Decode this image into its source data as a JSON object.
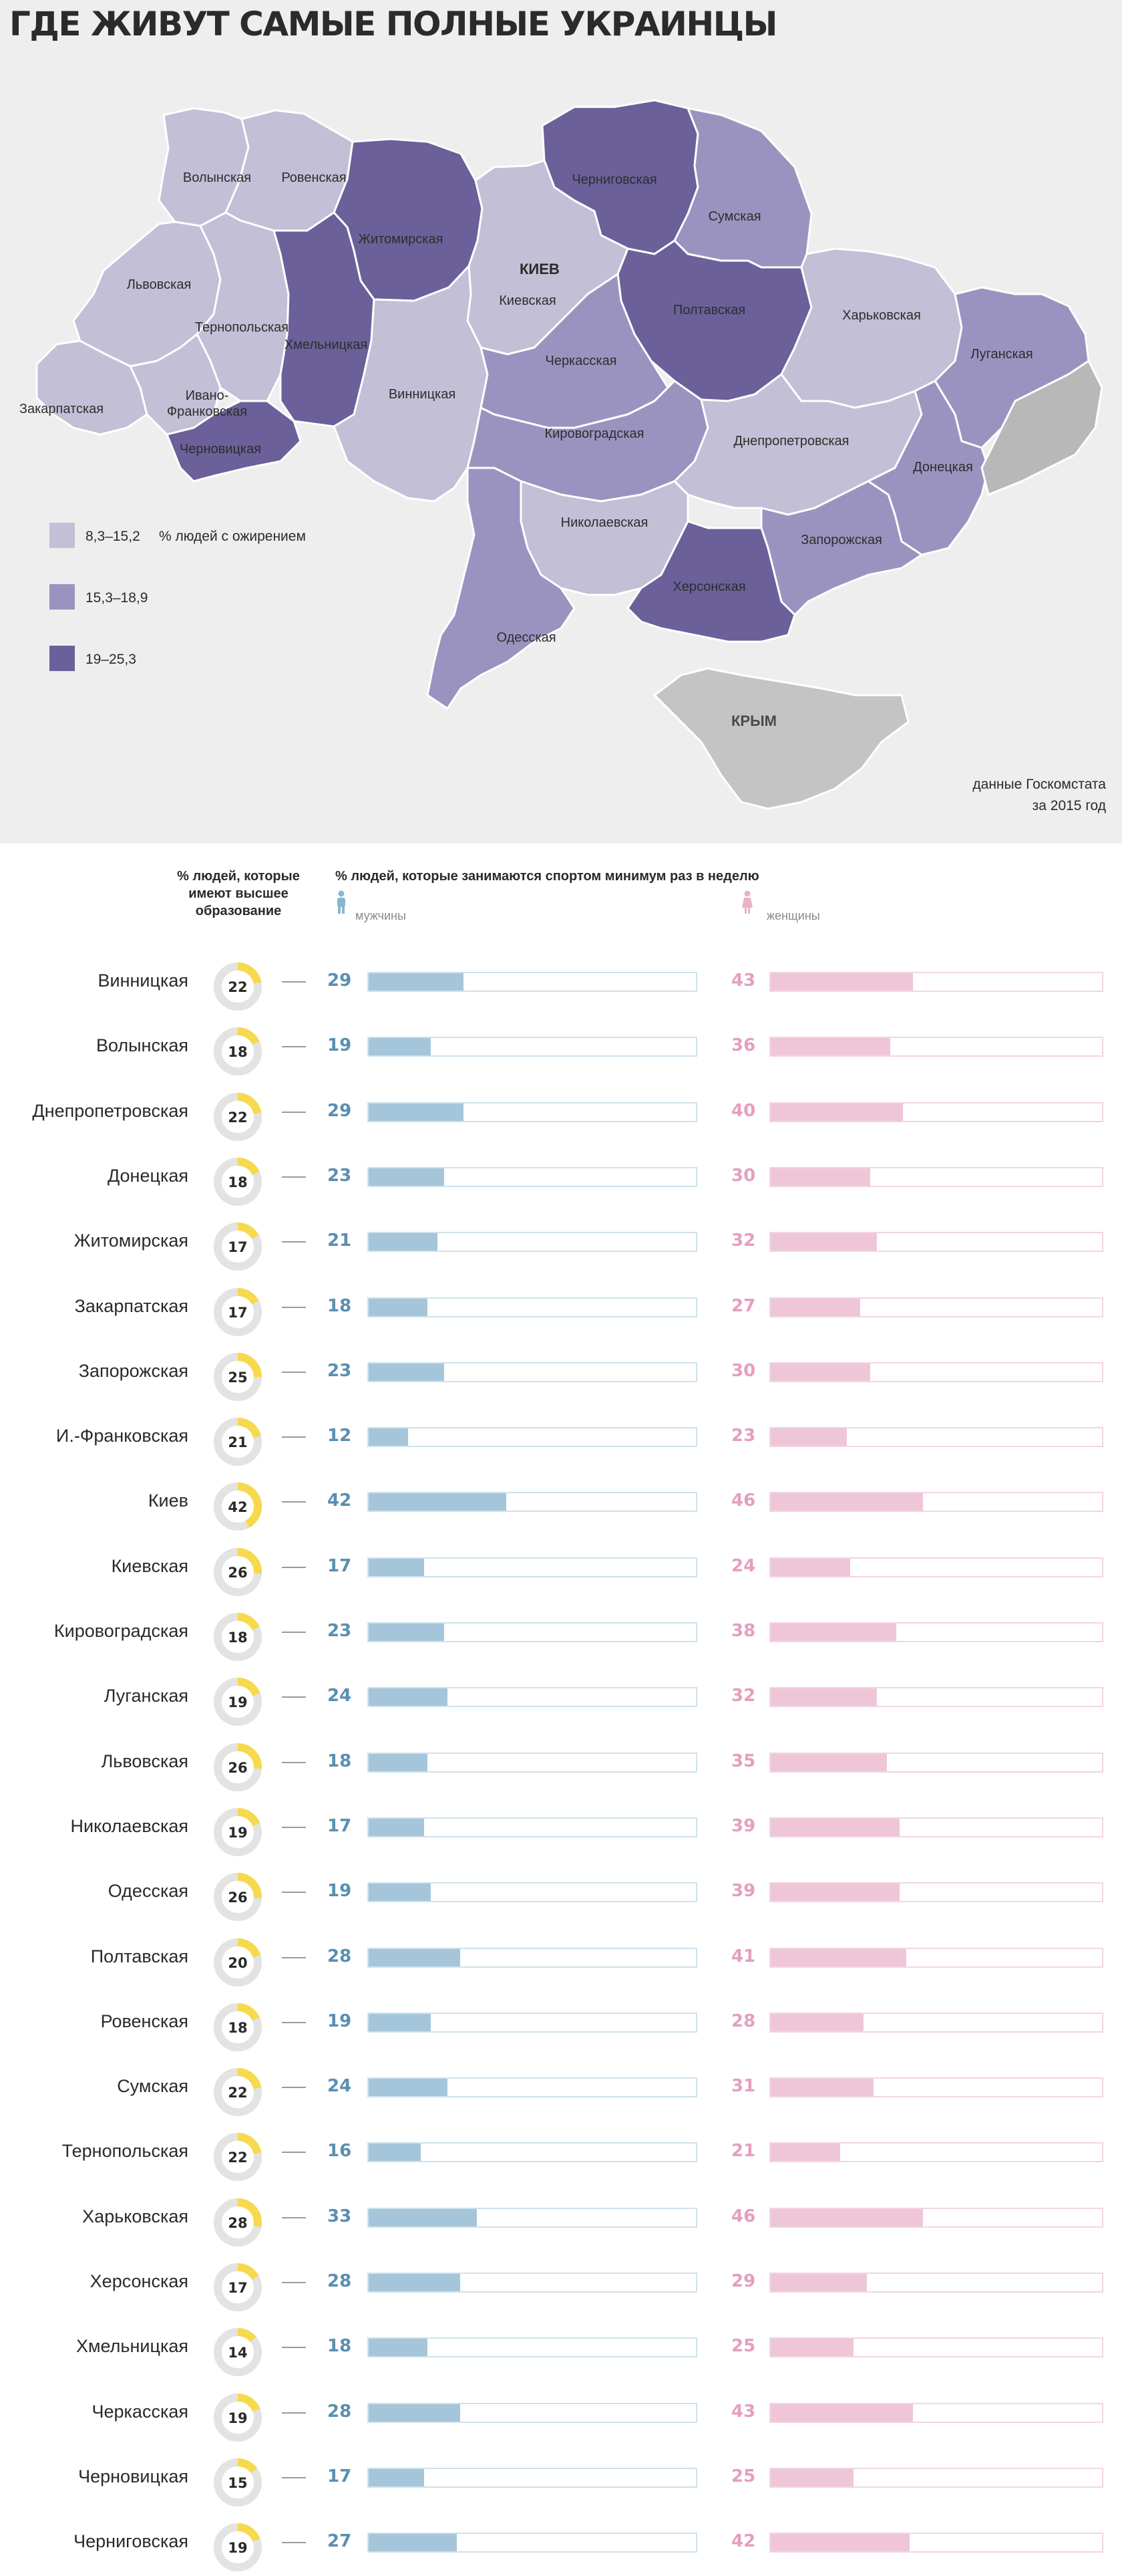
{
  "title": "ГДЕ ЖИВУТ САМЫЕ ПОЛНЫЕ УКРАИНЦЫ",
  "map": {
    "capital_label": "КИЕВ",
    "crimea_label": "КРЫМ",
    "regions": [
      {
        "name": "Волынская",
        "band": 1
      },
      {
        "name": "Ровенская",
        "band": 1
      },
      {
        "name": "Житомирская",
        "band": 3
      },
      {
        "name": "Черниговская",
        "band": 3
      },
      {
        "name": "Сумская",
        "band": 2
      },
      {
        "name": "Львовская",
        "band": 1
      },
      {
        "name": "Тернопольская",
        "band": 1
      },
      {
        "name": "Хмельницкая",
        "band": 3
      },
      {
        "name": "Киевская",
        "band": 1
      },
      {
        "name": "Полтавская",
        "band": 3
      },
      {
        "name": "Харьковская",
        "band": 1
      },
      {
        "name": "Луганская",
        "band": 2
      },
      {
        "name": "Закарпатская",
        "band": 1
      },
      {
        "name": "Ивано-\nФранковская",
        "band": 1
      },
      {
        "name": "Черновицкая",
        "band": 3
      },
      {
        "name": "Винницкая",
        "band": 1
      },
      {
        "name": "Черкасская",
        "band": 2
      },
      {
        "name": "Кировоградская",
        "band": 2
      },
      {
        "name": "Днепропетровская",
        "band": 1
      },
      {
        "name": "Донецкая",
        "band": 2
      },
      {
        "name": "Николаевская",
        "band": 1
      },
      {
        "name": "Запорожская",
        "band": 2
      },
      {
        "name": "Херсонская",
        "band": 3
      },
      {
        "name": "Одесская",
        "band": 2
      }
    ],
    "legend": {
      "note": "% людей с ожирением",
      "items": [
        {
          "label": "8,3–15,2",
          "color": "#c3bfd6"
        },
        {
          "label": "15,3–18,9",
          "color": "#9b93bf"
        },
        {
          "label": "19–25,3",
          "color": "#6b6099"
        }
      ]
    },
    "source": [
      "данные Госкомстата",
      "за 2015 год"
    ]
  },
  "table_header": {
    "education": "% людей, которые имеют высшее образование",
    "sport": "% людей, которые занимаются спортом минимум раз в неделю",
    "men": "мужчины",
    "women": "женщины"
  },
  "chart_data": {
    "type": "bar",
    "categories": [
      "Винницкая",
      "Волынская",
      "Днепропетровская",
      "Донецкая",
      "Житомирская",
      "Закарпатская",
      "Запорожская",
      "И.-Франковская",
      "Киев",
      "Киевская",
      "Кировоградская",
      "Луганская",
      "Львовская",
      "Николаевская",
      "Одесская",
      "Полтавская",
      "Ровенская",
      "Сумская",
      "Тернопольская",
      "Харьковская",
      "Херсонская",
      "Хмельницкая",
      "Черкасская",
      "Черновицкая",
      "Черниговская"
    ],
    "series": [
      {
        "name": "% людей, которые имеют высшее образование",
        "values": [
          22,
          18,
          22,
          18,
          17,
          17,
          25,
          21,
          42,
          26,
          18,
          19,
          26,
          19,
          26,
          20,
          18,
          22,
          22,
          28,
          17,
          14,
          19,
          15,
          19
        ]
      },
      {
        "name": "мужчины",
        "values": [
          29,
          19,
          29,
          23,
          21,
          18,
          23,
          12,
          42,
          17,
          23,
          24,
          18,
          17,
          19,
          28,
          19,
          24,
          16,
          33,
          28,
          18,
          28,
          17,
          27
        ]
      },
      {
        "name": "женщины",
        "values": [
          43,
          36,
          40,
          30,
          32,
          27,
          30,
          23,
          46,
          24,
          38,
          32,
          35,
          39,
          39,
          41,
          28,
          31,
          21,
          46,
          29,
          25,
          43,
          25,
          42
        ]
      }
    ],
    "ylim": [
      0,
      100
    ],
    "colors": {
      "education": "#f6d94c",
      "men": "#a5c6da",
      "women": "#efc6d8"
    }
  }
}
